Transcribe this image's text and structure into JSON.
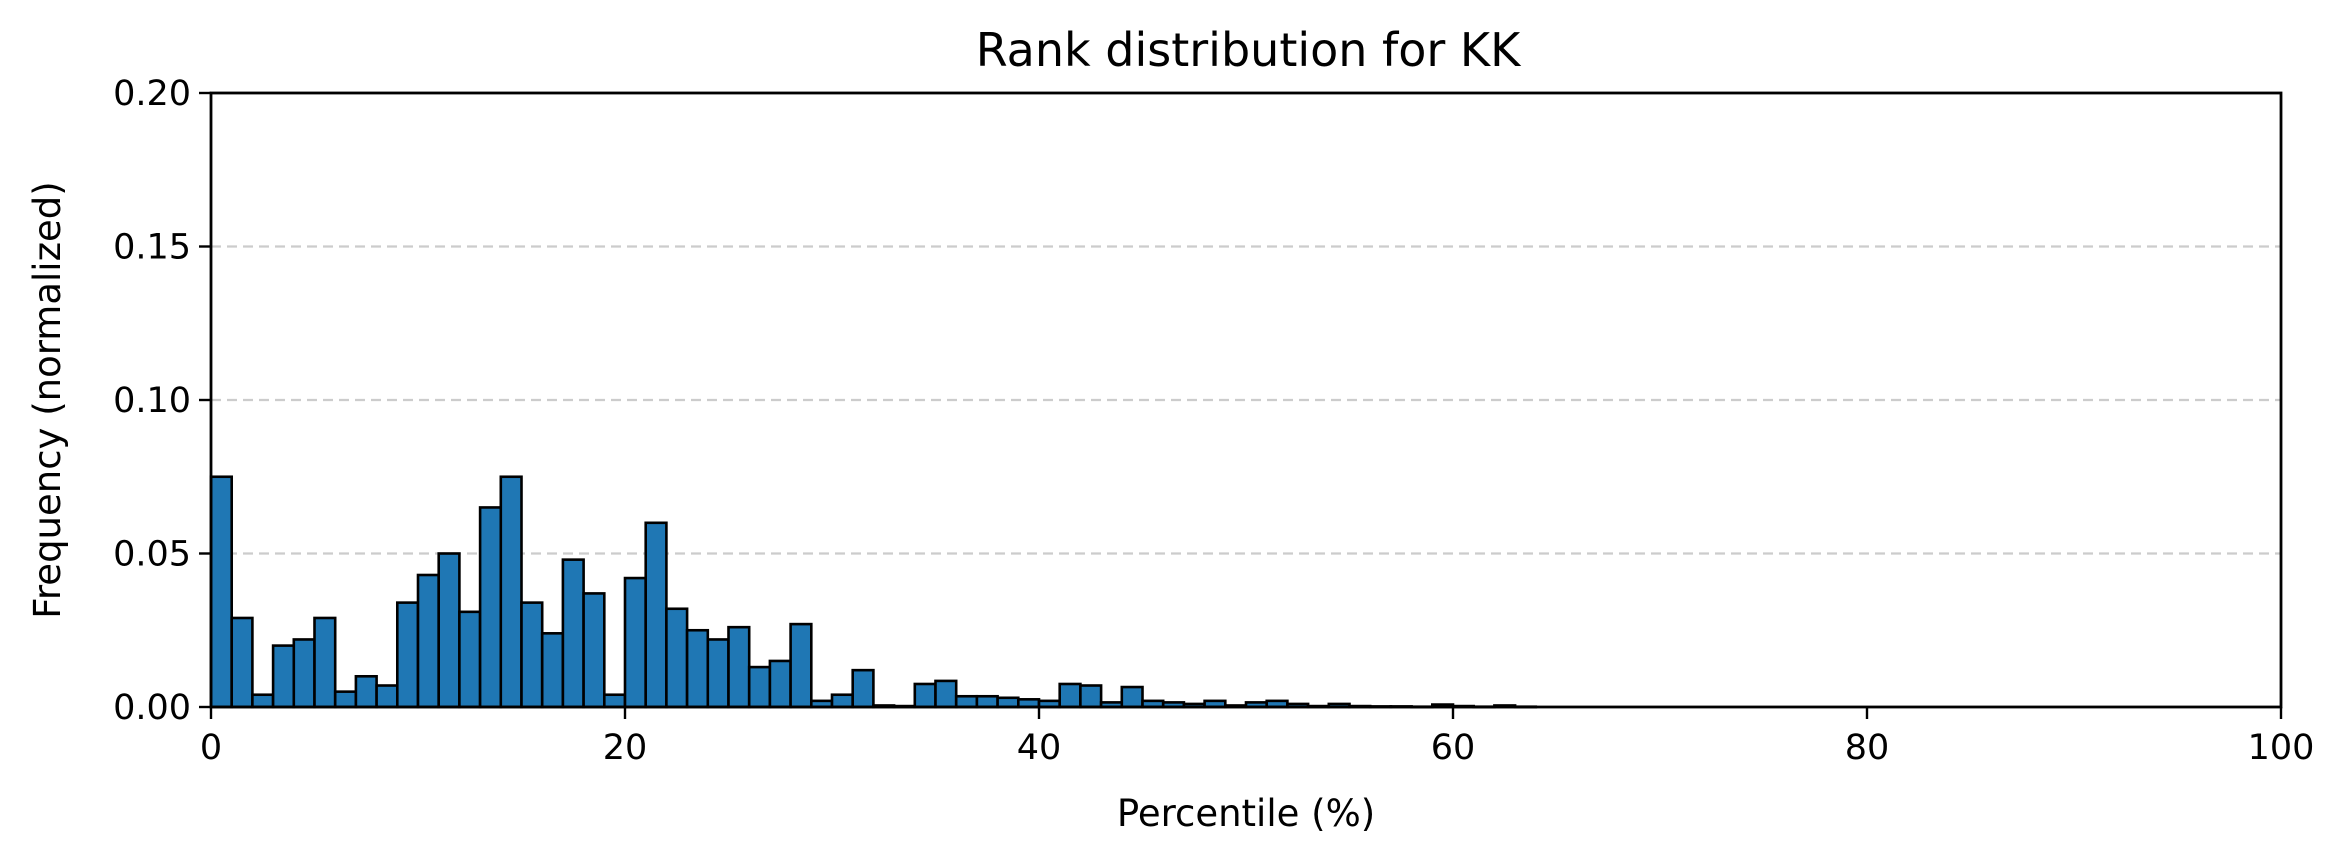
{
  "chart_data": {
    "type": "bar",
    "title": "Rank distribution for KK",
    "xlabel": "Percentile (%)",
    "ylabel": "Frequency (normalized)",
    "xlim": [
      0,
      100
    ],
    "ylim": [
      0,
      0.2
    ],
    "xticks": [
      0,
      20,
      40,
      60,
      80,
      100
    ],
    "xtick_labels": [
      "0",
      "20",
      "40",
      "60",
      "80",
      "100"
    ],
    "yticks": [
      0.0,
      0.05,
      0.1,
      0.15,
      0.2
    ],
    "ytick_labels": [
      "0.00",
      "0.05",
      "0.10",
      "0.15",
      "0.20"
    ],
    "grid": "horizontal dashed",
    "bar_color": "#1f77b4",
    "bin_width": 1,
    "bin_starts": [
      0,
      1,
      2,
      3,
      4,
      5,
      6,
      7,
      8,
      9,
      10,
      11,
      12,
      13,
      14,
      15,
      16,
      17,
      18,
      19,
      20,
      21,
      22,
      23,
      24,
      25,
      26,
      27,
      28,
      29,
      30,
      31,
      32,
      33,
      34,
      35,
      36,
      37,
      38,
      39,
      40,
      41,
      42,
      43,
      44,
      45,
      46,
      47,
      48,
      49,
      50,
      51,
      52,
      53,
      54,
      55,
      56,
      57,
      58,
      59,
      60,
      61,
      62,
      63,
      64,
      65,
      66,
      67,
      68,
      69,
      70,
      71,
      72,
      73,
      74,
      75,
      76,
      77,
      78,
      79,
      80,
      81,
      82,
      83,
      84,
      85,
      86,
      87,
      88,
      89,
      90,
      91,
      92,
      93,
      94,
      95,
      96,
      97,
      98,
      99
    ],
    "values": [
      0.075,
      0.029,
      0.004,
      0.02,
      0.022,
      0.029,
      0.005,
      0.01,
      0.007,
      0.034,
      0.043,
      0.05,
      0.031,
      0.065,
      0.075,
      0.034,
      0.024,
      0.048,
      0.037,
      0.004,
      0.042,
      0.06,
      0.032,
      0.025,
      0.022,
      0.026,
      0.013,
      0.015,
      0.027,
      0.002,
      0.004,
      0.012,
      0.0005,
      0.0003,
      0.0075,
      0.0085,
      0.0035,
      0.0035,
      0.003,
      0.0025,
      0.002,
      0.0075,
      0.007,
      0.0015,
      0.0065,
      0.002,
      0.0015,
      0.001,
      0.002,
      0.0005,
      0.0015,
      0.002,
      0.001,
      0.0003,
      0.001,
      0.0003,
      0.0002,
      0.0002,
      0.0001,
      0.0008,
      0.0003,
      0.0001,
      0.0005,
      0.0001,
      0,
      0,
      0,
      0,
      0,
      0,
      0,
      0,
      0,
      0,
      0,
      0,
      0,
      0,
      0,
      0,
      0,
      0,
      0,
      0,
      0,
      0,
      0,
      0,
      0,
      0,
      0,
      0,
      0,
      0,
      0,
      0,
      0,
      0,
      0,
      0
    ]
  }
}
